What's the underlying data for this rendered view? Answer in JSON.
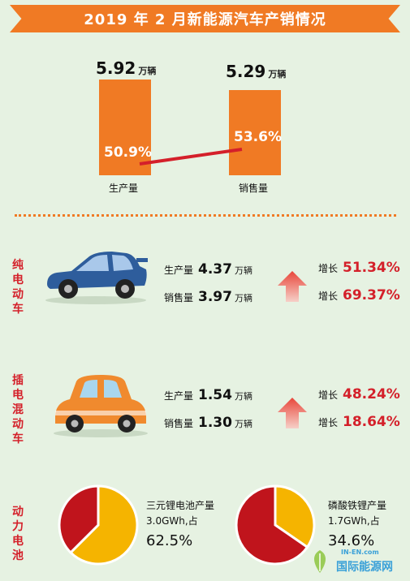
{
  "title": "2019 年 2 月新能源汽车产销情况",
  "colors": {
    "orange": "#f07a24",
    "red": "#d4202a",
    "yellow": "#f5b400",
    "darkred": "#c0141c",
    "bg": "#e6f2e2"
  },
  "chart_data": [
    {
      "type": "bar",
      "categories": [
        "生产量",
        "销售量"
      ],
      "values": [
        5.92,
        5.29
      ],
      "value_labels": [
        "5.92",
        "5.29"
      ],
      "unit": "万辆",
      "growth": [
        "50.9%",
        "53.6%"
      ]
    },
    {
      "type": "pie",
      "slices": [
        {
          "value": 62.5,
          "color": "#f5b400"
        },
        {
          "value": 37.5,
          "color": "#c0141c"
        }
      ],
      "label": "三元锂电池产量\n3.0GWh,占",
      "pct_label": "62.5%"
    },
    {
      "type": "pie",
      "slices": [
        {
          "value": 34.6,
          "color": "#f5b400"
        },
        {
          "value": 65.4,
          "color": "#c0141c"
        }
      ],
      "label": "磷酸铁锂产量\n1.7GWh,占",
      "pct_label": "34.6%"
    }
  ],
  "bev": {
    "title": "纯电动车",
    "prod_label": "生产量",
    "prod_value": "4.37",
    "prod_unit": "万辆",
    "sales_label": "销售量",
    "sales_value": "3.97",
    "sales_unit": "万辆",
    "grow_label_1": "增长",
    "grow_value_1": "51.34%",
    "grow_label_2": "增长",
    "grow_value_2": "69.37%"
  },
  "phev": {
    "title": "插电混动车",
    "prod_label": "生产量",
    "prod_value": "1.54",
    "prod_unit": "万辆",
    "sales_label": "销售量",
    "sales_value": "1.30",
    "sales_unit": "万辆",
    "grow_label_1": "增长",
    "grow_value_1": "48.24%",
    "grow_label_2": "增长",
    "grow_value_2": "18.64%"
  },
  "battery": {
    "title": "动力电池"
  },
  "watermark": {
    "top": "IN-EN.com",
    "bottom": "国际能源网"
  }
}
